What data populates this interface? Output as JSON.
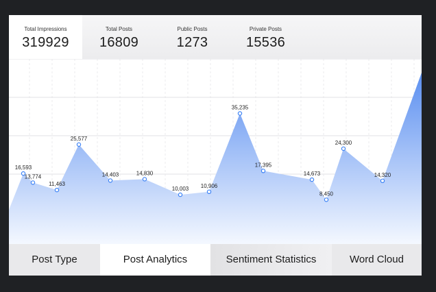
{
  "stats": [
    {
      "label": "Total Impressions",
      "value": "319929"
    },
    {
      "label": "Total Posts",
      "value": "16809"
    },
    {
      "label": "Public Posts",
      "value": "1273"
    },
    {
      "label": "Private Posts",
      "value": "15536"
    }
  ],
  "tabs": [
    {
      "label": "Post Type"
    },
    {
      "label": "Post Analytics"
    },
    {
      "label": "Sentiment Statistics"
    },
    {
      "label": "Word Cloud"
    }
  ],
  "colors": {
    "area_top": "#5b8ff0",
    "area_bottom": "#f4f8ff",
    "marker_stroke": "#3b82f6"
  },
  "chart_data": {
    "type": "area",
    "values": [
      16593,
      13774,
      11463,
      25577,
      14403,
      14830,
      10003,
      10906,
      35235,
      17395,
      14673,
      8450,
      24300,
      14320
    ],
    "labels": [
      "16,593",
      "13,774",
      "11,463",
      "25,577",
      "14,403",
      "14,830",
      "10,003",
      "10,906",
      "35,235",
      "17,395",
      "14,673",
      "8,450",
      "24,300",
      "14,320"
    ],
    "grid": true
  }
}
